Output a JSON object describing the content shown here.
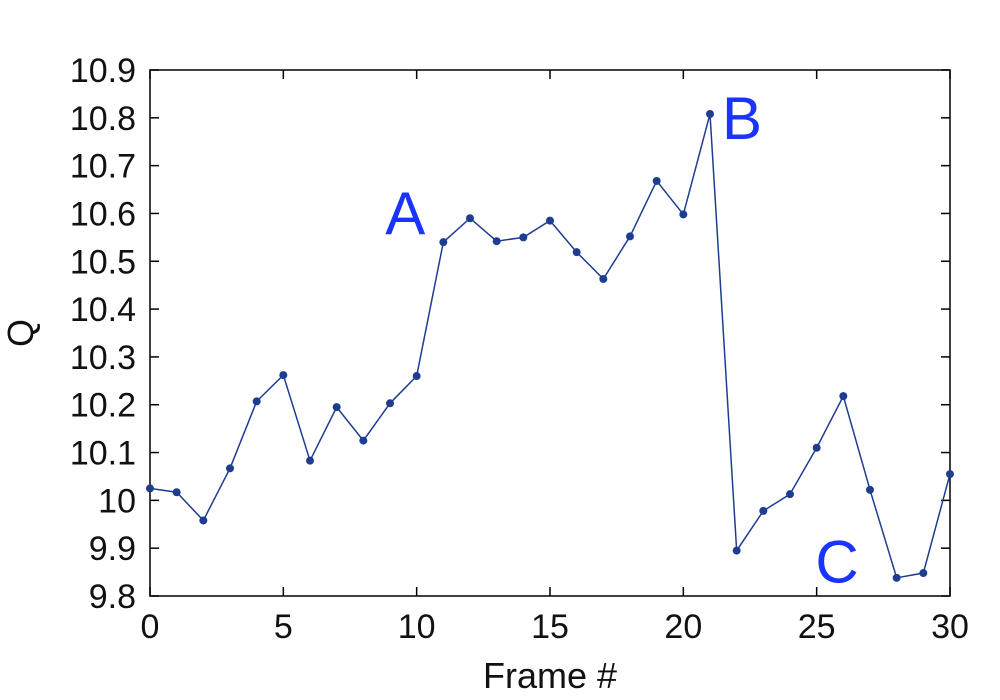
{
  "chart_data": {
    "type": "line",
    "title": "",
    "xlabel": "Frame #",
    "ylabel": "Q",
    "xlim": [
      0,
      30
    ],
    "ylim": [
      9.8,
      10.9
    ],
    "xticks": [
      "0",
      "5",
      "10",
      "15",
      "20",
      "25",
      "30"
    ],
    "yticks": [
      "9.8",
      "9.9",
      "10",
      "10.1",
      "10.2",
      "10.3",
      "10.4",
      "10.5",
      "10.6",
      "10.7",
      "10.8",
      "10.9"
    ],
    "grid": false,
    "x": [
      0,
      1,
      2,
      3,
      4,
      5,
      6,
      7,
      8,
      9,
      10,
      11,
      12,
      13,
      14,
      15,
      16,
      17,
      18,
      19,
      20,
      21,
      22,
      23,
      24,
      25,
      26,
      27,
      28,
      29,
      30
    ],
    "series": [
      {
        "values": [
          10.025,
          10.017,
          9.958,
          10.067,
          10.207,
          10.262,
          10.083,
          10.195,
          10.125,
          10.203,
          10.26,
          10.54,
          10.59,
          10.542,
          10.55,
          10.585,
          10.519,
          10.463,
          10.552,
          10.668,
          10.598,
          10.808,
          9.895,
          9.978,
          10.013,
          10.11,
          10.218,
          10.022,
          9.838,
          9.848,
          10.055
        ],
        "color": "#1f3d8f"
      }
    ],
    "annotations": [
      {
        "text": "A",
        "x": 11,
        "y": 10.54,
        "color": "#1a33ff"
      },
      {
        "text": "B",
        "x": 21,
        "y": 10.808,
        "color": "#1a33ff"
      },
      {
        "text": "C",
        "x": 23,
        "y": 9.895,
        "color": "#1a33ff"
      }
    ]
  }
}
